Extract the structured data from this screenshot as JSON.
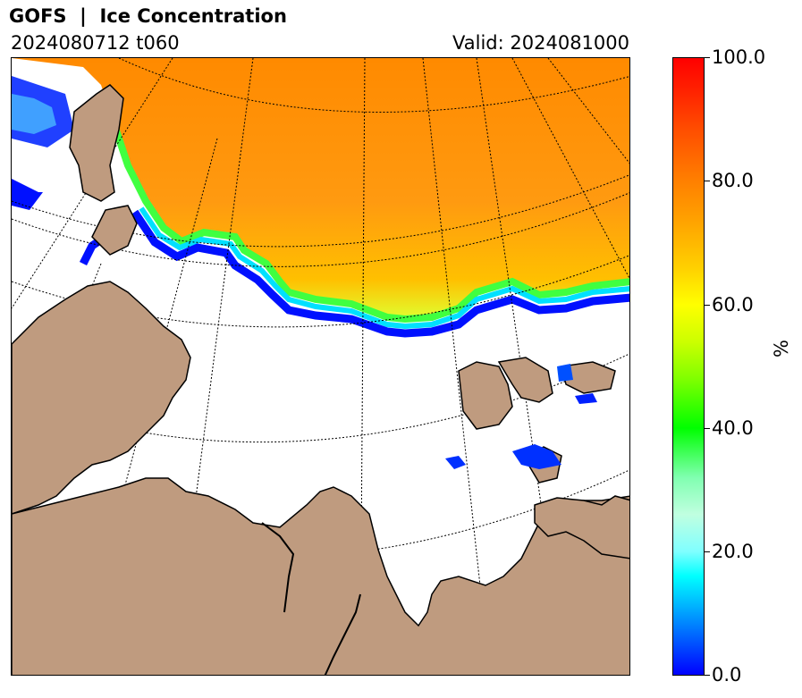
{
  "header": {
    "title": "GOFS  |  Ice Concentration",
    "run": "2024080712 t060",
    "valid": "Valid: 2024081000"
  },
  "colorbar": {
    "unit": "%",
    "ticks": [
      "100.0",
      "80.0",
      "60.0",
      "40.0",
      "20.0",
      "0.0"
    ],
    "range": [
      0,
      100
    ],
    "colors": {
      "low": "#0000ff",
      "mid": "#00ff00",
      "high": "#ff0000"
    }
  },
  "map": {
    "land_color": "#bf9b7f",
    "ocean_color": "#ffffff",
    "graticule": "dotted"
  }
}
